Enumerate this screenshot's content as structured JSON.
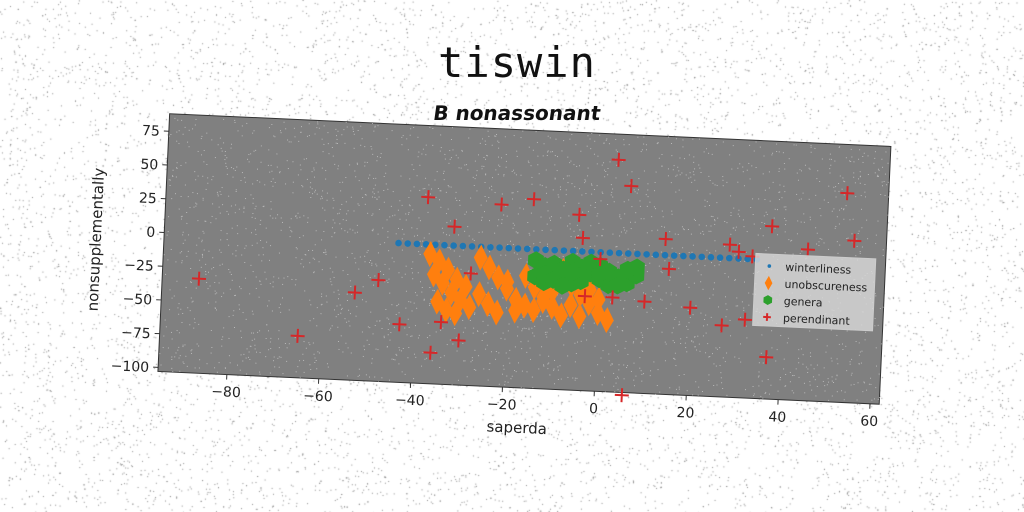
{
  "header": {
    "title": "tiswin",
    "subtitle": "B nonassonant"
  },
  "chart_data": {
    "type": "scatter",
    "xlabel": "saperda",
    "ylabel": "nonsupplementally",
    "xlim": [
      -95,
      62
    ],
    "ylim": [
      -103,
      88
    ],
    "xticks": [
      -80,
      -60,
      -40,
      -20,
      0,
      20,
      40,
      60
    ],
    "yticks": [
      75,
      50,
      25,
      0,
      -25,
      -50,
      -75,
      -100
    ],
    "grid": false,
    "legend_position": "right",
    "background_color": "#808080",
    "series": [
      {
        "name": "winterliness",
        "marker": "circle",
        "color": "#1f77b4",
        "points": [
          [
            -44,
            0
          ],
          [
            -42,
            0
          ],
          [
            -40,
            0
          ],
          [
            -38,
            0
          ],
          [
            -36,
            0
          ],
          [
            -34,
            0
          ],
          [
            -32,
            0
          ],
          [
            -30,
            0
          ],
          [
            -28,
            0
          ],
          [
            -26,
            0
          ],
          [
            -24,
            0
          ],
          [
            -22,
            0
          ],
          [
            -20,
            0
          ],
          [
            -18,
            0
          ],
          [
            -16,
            0
          ],
          [
            -14,
            0
          ],
          [
            -12,
            0
          ],
          [
            -10,
            0
          ],
          [
            -8,
            0
          ],
          [
            -6,
            0
          ],
          [
            -4,
            0
          ],
          [
            -2,
            0
          ],
          [
            0,
            0
          ],
          [
            2,
            0
          ],
          [
            4,
            0
          ],
          [
            6,
            0
          ],
          [
            8,
            0
          ],
          [
            10,
            0
          ],
          [
            12,
            0
          ],
          [
            14,
            0
          ],
          [
            16,
            0
          ],
          [
            18,
            0
          ],
          [
            20,
            0
          ],
          [
            22,
            0
          ],
          [
            24,
            0
          ],
          [
            26,
            0
          ],
          [
            28,
            0
          ],
          [
            30,
            0
          ],
          [
            32,
            0
          ],
          [
            34,
            0
          ]
        ]
      },
      {
        "name": "unobscureness",
        "marker": "diamond",
        "color": "#ff7f0e",
        "points": [
          [
            -37,
            -7
          ],
          [
            -35,
            -12
          ],
          [
            -33,
            -18
          ],
          [
            -31,
            -25
          ],
          [
            -29,
            -30
          ],
          [
            -36,
            -22
          ],
          [
            -34,
            -28
          ],
          [
            -32,
            -35
          ],
          [
            -30,
            -40
          ],
          [
            -28,
            -45
          ],
          [
            -35,
            -42
          ],
          [
            -33,
            -48
          ],
          [
            -31,
            -50
          ],
          [
            -26,
            -8
          ],
          [
            -24,
            -15
          ],
          [
            -22,
            -22
          ],
          [
            -20,
            -30
          ],
          [
            -18,
            -38
          ],
          [
            -26,
            -35
          ],
          [
            -24,
            -42
          ],
          [
            -22,
            -48
          ],
          [
            -20,
            -25
          ],
          [
            -16,
            -20
          ],
          [
            -14,
            -28
          ],
          [
            -12,
            -35
          ],
          [
            -10,
            -42
          ],
          [
            -8,
            -48
          ],
          [
            -14,
            -45
          ],
          [
            -12,
            -38
          ],
          [
            -10,
            -30
          ],
          [
            -6,
            -25
          ],
          [
            -4,
            -32
          ],
          [
            -2,
            -38
          ],
          [
            0,
            -45
          ],
          [
            2,
            -50
          ],
          [
            -4,
            -48
          ],
          [
            -2,
            -28
          ],
          [
            0,
            -35
          ],
          [
            -8,
            -15
          ],
          [
            -6,
            -40
          ],
          [
            -16,
            -42
          ],
          [
            -18,
            -46
          ]
        ]
      },
      {
        "name": "genera",
        "marker": "hexagon",
        "color": "#2ca02c",
        "points": [
          [
            -14,
            -8
          ],
          [
            -12,
            -12
          ],
          [
            -10,
            -16
          ],
          [
            -8,
            -20
          ],
          [
            -6,
            -24
          ],
          [
            -14,
            -20
          ],
          [
            -12,
            -24
          ],
          [
            -10,
            -10
          ],
          [
            -8,
            -14
          ],
          [
            -6,
            -8
          ],
          [
            -4,
            -12
          ],
          [
            -2,
            -16
          ],
          [
            0,
            -20
          ],
          [
            2,
            -24
          ],
          [
            -4,
            -22
          ],
          [
            -2,
            -8
          ],
          [
            0,
            -10
          ],
          [
            2,
            -14
          ],
          [
            4,
            -18
          ],
          [
            6,
            -22
          ],
          [
            8,
            -10
          ],
          [
            8,
            -16
          ],
          [
            6,
            -12
          ],
          [
            4,
            -24
          ],
          [
            -12,
            -18
          ],
          [
            -10,
            -22
          ],
          [
            -8,
            -26
          ],
          [
            -4,
            -18
          ],
          [
            0,
            -16
          ],
          [
            -6,
            -16
          ]
        ]
      },
      {
        "name": "perendinant",
        "marker": "plus",
        "color": "#d62728",
        "points": [
          [
            -87,
            -33
          ],
          [
            -65,
            -72
          ],
          [
            -53,
            -38
          ],
          [
            -48,
            -28
          ],
          [
            -43,
            -60
          ],
          [
            -38,
            35
          ],
          [
            -36,
            -80
          ],
          [
            -34,
            -57
          ],
          [
            -32,
            14
          ],
          [
            -30,
            -70
          ],
          [
            -28,
            -20
          ],
          [
            -22,
            32
          ],
          [
            -15,
            37
          ],
          [
            -5,
            27
          ],
          [
            -4,
            10
          ],
          [
            -3,
            -33
          ],
          [
            0,
            -5
          ],
          [
            3,
            -33
          ],
          [
            3,
            69
          ],
          [
            6,
            -105
          ],
          [
            6,
            50
          ],
          [
            10,
            -35
          ],
          [
            14,
            12
          ],
          [
            15,
            -10
          ],
          [
            20,
            -38
          ],
          [
            27,
            -50
          ],
          [
            28,
            10
          ],
          [
            30,
            5
          ],
          [
            32,
            -45
          ],
          [
            33,
            2
          ],
          [
            37,
            25
          ],
          [
            37,
            -72
          ],
          [
            45,
            9
          ],
          [
            53,
            52
          ],
          [
            55,
            17
          ]
        ]
      }
    ]
  }
}
